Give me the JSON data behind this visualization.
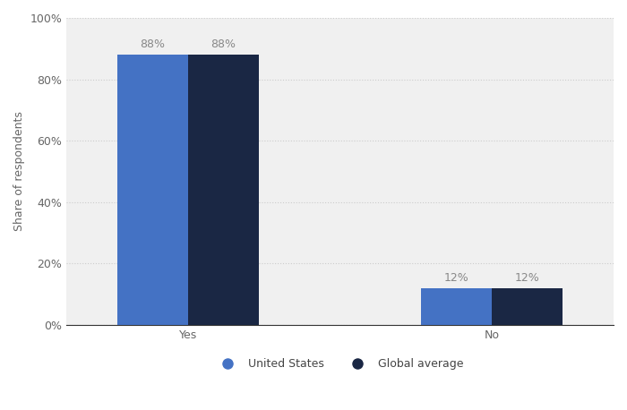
{
  "categories": [
    "Yes",
    "No"
  ],
  "us_values": [
    88,
    12
  ],
  "global_values": [
    88,
    12
  ],
  "us_color": "#4472C4",
  "global_color": "#1A2744",
  "ylabel": "Share of respondents",
  "ylim": [
    0,
    100
  ],
  "yticks": [
    0,
    20,
    40,
    60,
    80,
    100
  ],
  "ytick_labels": [
    "0%",
    "20%",
    "40%",
    "60%",
    "80%",
    "100%"
  ],
  "legend_labels": [
    "United States",
    "Global average"
  ],
  "bar_width": 0.35,
  "group_positions": [
    1.0,
    2.5
  ],
  "label_color": "#888888",
  "label_fontsize": 9,
  "axis_label_fontsize": 9,
  "tick_label_fontsize": 9,
  "legend_fontsize": 9,
  "plot_background_color": "#f0f0f0",
  "grid_color": "#cccccc",
  "spine_color": "#333333"
}
